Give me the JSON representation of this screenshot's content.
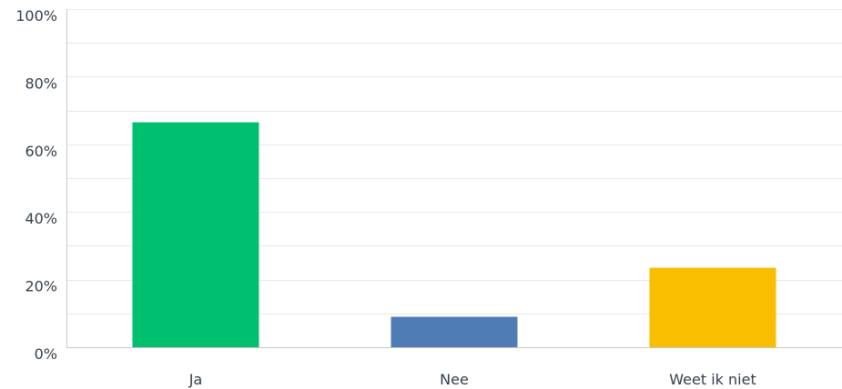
{
  "chart_data": {
    "type": "bar",
    "title": "",
    "xlabel": "",
    "ylabel": "",
    "categories": [
      "Ja",
      "Nee",
      "Weet ik niet"
    ],
    "values": [
      66.5,
      9,
      23.5
    ],
    "colors": [
      "#00bf6f",
      "#507cb6",
      "#f9be00"
    ],
    "ylim": [
      0,
      100
    ],
    "y_ticks": [
      0,
      20,
      40,
      60,
      80,
      100
    ],
    "y_tick_labels": [
      "0%",
      "20%",
      "40%",
      "60%",
      "80%",
      "100%"
    ],
    "grid": true,
    "gridline_color": "#e8e8e8",
    "axis_color": "#c8c8c8",
    "text_color": "#333e48"
  }
}
